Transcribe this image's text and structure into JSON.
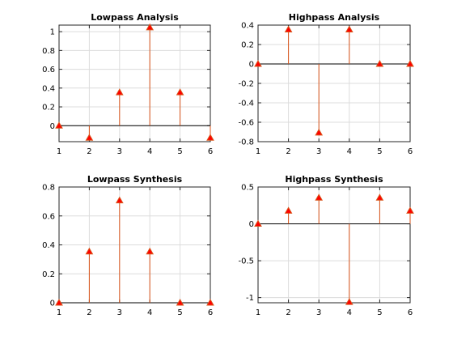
{
  "chart_data": [
    {
      "type": "stem",
      "title": "Lowpass Analysis",
      "x": [
        1,
        2,
        3,
        4,
        5,
        6
      ],
      "values": [
        0,
        -0.129,
        0.354,
        1.045,
        0.354,
        -0.129
      ],
      "xlim": [
        1,
        6
      ],
      "ylim": [
        -0.17,
        1.07
      ],
      "xticks": [
        "1",
        "2",
        "3",
        "4",
        "5",
        "6"
      ],
      "yticks": [
        0,
        0.2,
        0.4,
        0.6,
        0.8,
        1
      ],
      "ytick_labels": [
        "0",
        "0.2",
        "0.4",
        "0.6",
        "0.8",
        "1"
      ],
      "grid": true
    },
    {
      "type": "stem",
      "title": "Highpass Analysis",
      "x": [
        1,
        2,
        3,
        4,
        5,
        6
      ],
      "values": [
        0,
        0.354,
        -0.707,
        0.354,
        0,
        0
      ],
      "xlim": [
        1,
        6
      ],
      "ylim": [
        -0.8,
        0.4
      ],
      "xticks": [
        "1",
        "2",
        "3",
        "4",
        "5",
        "6"
      ],
      "yticks": [
        -0.8,
        -0.6,
        -0.4,
        -0.2,
        0,
        0.2,
        0.4
      ],
      "ytick_labels": [
        "-0.8",
        "-0.6",
        "-0.4",
        "-0.2",
        "0",
        "0.2",
        "0.4"
      ],
      "grid": true
    },
    {
      "type": "stem",
      "title": "Lowpass Synthesis",
      "x": [
        1,
        2,
        3,
        4,
        5,
        6
      ],
      "values": [
        0,
        0.354,
        0.707,
        0.354,
        0,
        0
      ],
      "xlim": [
        1,
        6
      ],
      "ylim": [
        0,
        0.8
      ],
      "xticks": [
        "1",
        "2",
        "3",
        "4",
        "5",
        "6"
      ],
      "yticks": [
        0,
        0.2,
        0.4,
        0.6,
        0.8
      ],
      "ytick_labels": [
        "0",
        "0.2",
        "0.4",
        "0.6",
        "0.8"
      ],
      "grid": true
    },
    {
      "type": "stem",
      "title": "Highpass Synthesis",
      "x": [
        1,
        2,
        3,
        4,
        5,
        6
      ],
      "values": [
        0,
        0.177,
        0.354,
        -1.061,
        0.354,
        0.177
      ],
      "xlim": [
        1,
        6
      ],
      "ylim": [
        -1.07,
        0.5
      ],
      "xticks": [
        "1",
        "2",
        "3",
        "4",
        "5",
        "6"
      ],
      "yticks": [
        -1,
        -0.5,
        0,
        0.5
      ],
      "ytick_labels": [
        "-1",
        "-0.5",
        "0",
        "0.5"
      ],
      "grid": true
    }
  ],
  "colors": {
    "stem": "#d95319",
    "marker_fill": "#ff0000",
    "baseline": "#000000",
    "grid": "#dcdcdc",
    "axes_box": "#262626"
  }
}
